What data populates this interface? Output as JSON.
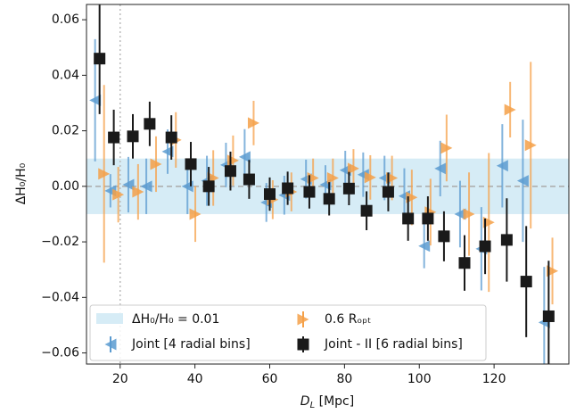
{
  "chart_data": {
    "type": "errorbar",
    "x_label": {
      "main": "D",
      "sub": "L",
      "rest": " [Mpc]"
    },
    "y_label": "ΔH₀/H₀",
    "xlim": [
      11,
      140
    ],
    "ylim": [
      -0.064,
      0.0655
    ],
    "xticks": [
      20,
      40,
      60,
      80,
      100,
      120
    ],
    "yticks": [
      {
        "value": -0.06,
        "label": "−0.06"
      },
      {
        "value": -0.04,
        "label": "−0.04"
      },
      {
        "value": -0.02,
        "label": "−0.02"
      },
      {
        "value": 0,
        "label": "0.00"
      },
      {
        "value": 0.02,
        "label": "0.02"
      },
      {
        "value": 0.04,
        "label": "0.04"
      },
      {
        "value": 0.06,
        "label": "0.06"
      }
    ],
    "band": {
      "label": "ΔH₀/H₀ = 0.01",
      "value": 0.01,
      "color": "#d6ecf6"
    },
    "hline": 0,
    "vline": 20,
    "series": [
      {
        "name": "Joint [4 radial bins]",
        "color": "#5b9bd0",
        "marker": "left",
        "x": [
          13.3,
          17.4,
          22.2,
          27,
          32.7,
          38,
          43.2,
          48.3,
          53.3,
          59.1,
          63.9,
          69.7,
          74.9,
          80.2,
          85,
          90.7,
          96,
          101.3,
          105.6,
          110.9,
          116.6,
          122.2,
          127.7,
          133.4
        ],
        "values": [
          0.031,
          -0.0016,
          0.0006,
          0,
          0.0125,
          0,
          0.002,
          0.0077,
          0.0106,
          -0.0058,
          -0.0032,
          0.0026,
          0.0006,
          0.0058,
          0.0042,
          0.003,
          -0.0035,
          -0.0215,
          0.0064,
          -0.01,
          -0.0225,
          0.0074,
          0.002,
          -0.049
        ],
        "errors": [
          0.022,
          0.006,
          0.01,
          0.01,
          0.008,
          0.01,
          0.009,
          0.008,
          0.01,
          0.007,
          0.007,
          0.007,
          0.007,
          0.007,
          0.008,
          0.008,
          0.01,
          0.008,
          0.01,
          0.012,
          0.015,
          0.015,
          0.022,
          0.02
        ]
      },
      {
        "name": "0.6 Rₒₚₜ",
        "color": "#f5a048",
        "marker": "right",
        "x": [
          15.7,
          19.5,
          24.8,
          29.6,
          34.9,
          40.1,
          44.9,
          50.2,
          55.7,
          60.8,
          65.8,
          71.6,
          76.9,
          82.4,
          86.9,
          92.7,
          98,
          103,
          107.3,
          113.3,
          118.6,
          124.3,
          129.8,
          135.6
        ],
        "values": [
          0.0045,
          -0.003,
          -0.002,
          0.008,
          0.0167,
          -0.01,
          0.003,
          0.0093,
          0.0228,
          -0.0048,
          -0.002,
          0.003,
          0.003,
          0.0064,
          0.0032,
          0.003,
          -0.004,
          -0.0093,
          0.0138,
          -0.01,
          -0.013,
          0.0276,
          0.0148,
          -0.0305
        ],
        "errors": [
          0.032,
          0.01,
          0.01,
          0.01,
          0.01,
          0.01,
          0.01,
          0.009,
          0.008,
          0.007,
          0.007,
          0.007,
          0.007,
          0.007,
          0.008,
          0.008,
          0.01,
          0.012,
          0.012,
          0.015,
          0.025,
          0.01,
          0.03,
          0.012
        ]
      },
      {
        "name": "Joint - II [6 radial bins]",
        "color": "#1a1a1a",
        "marker": "square",
        "x": [
          14.5,
          18.3,
          23.4,
          27.9,
          33.7,
          38.9,
          43.7,
          49.5,
          54.5,
          60,
          64.8,
          70.6,
          75.9,
          81.2,
          85.9,
          91.7,
          97,
          102.3,
          106.6,
          112.1,
          117.6,
          123.4,
          128.6,
          134.6
        ],
        "values": [
          0.046,
          0.0176,
          0.018,
          0.0225,
          0.0176,
          0.008,
          0,
          0.0055,
          0.0025,
          -0.0028,
          -0.0007,
          -0.002,
          -0.0045,
          -0.0008,
          -0.0088,
          -0.002,
          -0.0116,
          -0.0116,
          -0.018,
          -0.0276,
          -0.0216,
          -0.0193,
          -0.0343,
          -0.0468
        ],
        "errors": [
          0.02,
          0.01,
          0.008,
          0.008,
          0.008,
          0.008,
          0.007,
          0.007,
          0.007,
          0.006,
          0.006,
          0.006,
          0.006,
          0.006,
          0.007,
          0.007,
          0.008,
          0.008,
          0.009,
          0.01,
          0.01,
          0.015,
          0.02,
          0.02
        ]
      }
    ]
  }
}
